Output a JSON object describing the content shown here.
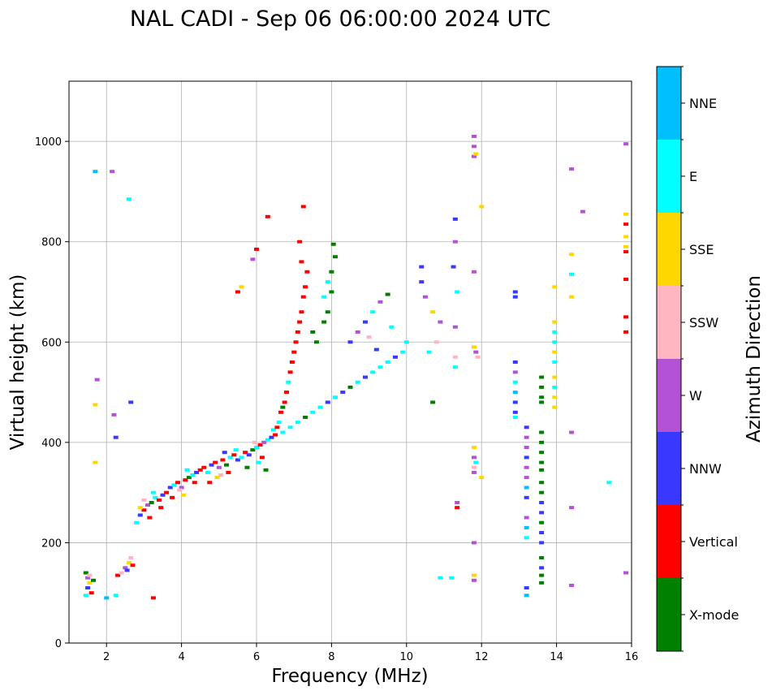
{
  "chart_data": {
    "type": "scatter",
    "title": "NAL CADI - Sep 06 06:00:00 2024 UTC",
    "xlabel": "Frequency (MHz)",
    "ylabel": "Virtual height (km)",
    "xlim": [
      1,
      16
    ],
    "ylim": [
      0,
      1120
    ],
    "xticks": [
      "2",
      "4",
      "6",
      "8",
      "10",
      "12",
      "14",
      "16"
    ],
    "yticks": [
      "0",
      "200",
      "400",
      "600",
      "800",
      "1000"
    ],
    "grid": true,
    "colorbar": {
      "label": "Azimuth Direction",
      "categories": [
        {
          "name": "X-mode",
          "color": "#008000"
        },
        {
          "name": "Vertical",
          "color": "#ff0000"
        },
        {
          "name": "NNW",
          "color": "#3838ff"
        },
        {
          "name": "W",
          "color": "#b452d6"
        },
        {
          "name": "SSW",
          "color": "#ffb6c1"
        },
        {
          "name": "SSE",
          "color": "#ffd700"
        },
        {
          "name": "E",
          "color": "#00ffff"
        },
        {
          "name": "NNE",
          "color": "#00bfff"
        }
      ]
    },
    "points": [
      [
        1.45,
        140,
        0
      ],
      [
        1.5,
        130,
        3
      ],
      [
        1.55,
        120,
        5
      ],
      [
        1.5,
        110,
        2
      ],
      [
        1.6,
        100,
        1
      ],
      [
        1.45,
        95,
        6
      ],
      [
        1.55,
        135,
        4
      ],
      [
        1.65,
        125,
        0
      ],
      [
        2.25,
        95,
        6
      ],
      [
        2.0,
        90,
        7
      ],
      [
        2.3,
        135,
        1
      ],
      [
        2.4,
        140,
        4
      ],
      [
        2.5,
        150,
        3
      ],
      [
        2.6,
        160,
        5
      ],
      [
        2.65,
        170,
        4
      ],
      [
        2.55,
        145,
        2
      ],
      [
        2.7,
        155,
        1
      ],
      [
        2.8,
        240,
        6
      ],
      [
        2.9,
        255,
        2
      ],
      [
        3.0,
        265,
        1
      ],
      [
        3.1,
        275,
        3
      ],
      [
        3.2,
        280,
        0
      ],
      [
        3.3,
        290,
        6
      ],
      [
        3.4,
        285,
        1
      ],
      [
        3.5,
        295,
        2
      ],
      [
        2.9,
        270,
        5
      ],
      [
        3.0,
        285,
        4
      ],
      [
        3.15,
        250,
        1
      ],
      [
        3.25,
        300,
        6
      ],
      [
        3.45,
        270,
        1
      ],
      [
        3.6,
        300,
        1
      ],
      [
        3.7,
        310,
        2
      ],
      [
        3.8,
        315,
        6
      ],
      [
        3.9,
        320,
        1
      ],
      [
        4.0,
        310,
        3
      ],
      [
        4.1,
        325,
        1
      ],
      [
        4.2,
        330,
        0
      ],
      [
        4.3,
        335,
        6
      ],
      [
        4.4,
        340,
        2
      ],
      [
        4.5,
        345,
        1
      ],
      [
        3.75,
        290,
        1
      ],
      [
        3.95,
        305,
        4
      ],
      [
        4.15,
        345,
        6
      ],
      [
        4.35,
        320,
        1
      ],
      [
        4.05,
        295,
        5
      ],
      [
        4.6,
        350,
        1
      ],
      [
        4.7,
        340,
        6
      ],
      [
        4.8,
        355,
        2
      ],
      [
        4.9,
        360,
        1
      ],
      [
        5.0,
        350,
        3
      ],
      [
        5.1,
        365,
        1
      ],
      [
        5.2,
        355,
        0
      ],
      [
        5.3,
        370,
        6
      ],
      [
        5.4,
        375,
        1
      ],
      [
        5.5,
        365,
        2
      ],
      [
        4.75,
        320,
        1
      ],
      [
        5.05,
        335,
        4
      ],
      [
        5.25,
        340,
        1
      ],
      [
        5.45,
        385,
        6
      ],
      [
        4.95,
        330,
        5
      ],
      [
        5.15,
        380,
        2
      ],
      [
        5.6,
        370,
        6
      ],
      [
        5.7,
        380,
        1
      ],
      [
        5.8,
        375,
        2
      ],
      [
        5.9,
        385,
        0
      ],
      [
        6.0,
        390,
        6
      ],
      [
        6.1,
        395,
        1
      ],
      [
        6.2,
        400,
        3
      ],
      [
        6.3,
        405,
        6
      ],
      [
        6.4,
        410,
        2
      ],
      [
        6.5,
        415,
        1
      ],
      [
        5.75,
        350,
        0
      ],
      [
        6.05,
        360,
        6
      ],
      [
        6.25,
        345,
        0
      ],
      [
        6.45,
        425,
        6
      ],
      [
        5.95,
        400,
        4
      ],
      [
        6.15,
        370,
        1
      ],
      [
        6.55,
        430,
        1
      ],
      [
        6.6,
        440,
        6
      ],
      [
        6.65,
        460,
        1
      ],
      [
        6.7,
        470,
        0
      ],
      [
        6.75,
        480,
        1
      ],
      [
        6.8,
        500,
        1
      ],
      [
        6.85,
        520,
        6
      ],
      [
        6.9,
        540,
        1
      ],
      [
        6.95,
        560,
        1
      ],
      [
        7.0,
        580,
        1
      ],
      [
        7.05,
        600,
        1
      ],
      [
        7.1,
        620,
        1
      ],
      [
        7.15,
        640,
        1
      ],
      [
        7.2,
        660,
        1
      ],
      [
        7.25,
        690,
        1
      ],
      [
        7.3,
        710,
        1
      ],
      [
        7.35,
        740,
        1
      ],
      [
        7.2,
        760,
        1
      ],
      [
        7.15,
        800,
        1
      ],
      [
        7.25,
        870,
        1
      ],
      [
        6.3,
        850,
        1
      ],
      [
        6.7,
        420,
        6
      ],
      [
        6.9,
        430,
        6
      ],
      [
        7.1,
        440,
        6
      ],
      [
        7.3,
        450,
        0
      ],
      [
        7.5,
        460,
        6
      ],
      [
        7.7,
        470,
        6
      ],
      [
        7.9,
        480,
        2
      ],
      [
        8.1,
        490,
        6
      ],
      [
        8.3,
        500,
        2
      ],
      [
        8.5,
        510,
        0
      ],
      [
        8.7,
        520,
        6
      ],
      [
        8.9,
        530,
        2
      ],
      [
        9.1,
        540,
        6
      ],
      [
        9.3,
        550,
        6
      ],
      [
        9.5,
        560,
        6
      ],
      [
        9.7,
        570,
        2
      ],
      [
        9.9,
        580,
        6
      ],
      [
        10.0,
        600,
        6
      ],
      [
        7.5,
        620,
        0
      ],
      [
        7.6,
        600,
        0
      ],
      [
        7.8,
        640,
        0
      ],
      [
        7.9,
        660,
        0
      ],
      [
        8.0,
        700,
        0
      ],
      [
        8.0,
        740,
        0
      ],
      [
        8.1,
        770,
        0
      ],
      [
        7.9,
        720,
        6
      ],
      [
        7.8,
        690,
        6
      ],
      [
        8.05,
        795,
        0
      ],
      [
        8.5,
        600,
        2
      ],
      [
        8.7,
        620,
        3
      ],
      [
        8.9,
        640,
        2
      ],
      [
        9.1,
        660,
        6
      ],
      [
        9.3,
        680,
        3
      ],
      [
        9.5,
        695,
        0
      ],
      [
        9.0,
        610,
        4
      ],
      [
        9.2,
        585,
        2
      ],
      [
        9.6,
        630,
        6
      ],
      [
        10.4,
        750,
        2
      ],
      [
        10.4,
        720,
        2
      ],
      [
        10.5,
        690,
        3
      ],
      [
        10.7,
        660,
        5
      ],
      [
        10.9,
        640,
        3
      ],
      [
        10.8,
        600,
        4
      ],
      [
        10.6,
        580,
        6
      ],
      [
        10.7,
        480,
        0
      ],
      [
        10.9,
        130,
        6
      ],
      [
        11.2,
        130,
        6
      ],
      [
        11.35,
        280,
        3
      ],
      [
        11.35,
        270,
        1
      ],
      [
        11.3,
        845,
        2
      ],
      [
        11.3,
        800,
        3
      ],
      [
        11.25,
        750,
        2
      ],
      [
        11.35,
        700,
        6
      ],
      [
        11.3,
        630,
        3
      ],
      [
        11.3,
        570,
        4
      ],
      [
        11.3,
        550,
        6
      ],
      [
        11.8,
        1010,
        3
      ],
      [
        11.8,
        990,
        3
      ],
      [
        11.8,
        970,
        3
      ],
      [
        11.85,
        975,
        5
      ],
      [
        11.8,
        740,
        3
      ],
      [
        11.8,
        590,
        5
      ],
      [
        11.85,
        580,
        3
      ],
      [
        11.9,
        570,
        4
      ],
      [
        12.0,
        870,
        5
      ],
      [
        11.8,
        390,
        5
      ],
      [
        11.8,
        370,
        3
      ],
      [
        11.8,
        350,
        4
      ],
      [
        11.8,
        340,
        3
      ],
      [
        11.85,
        360,
        6
      ],
      [
        11.8,
        200,
        3
      ],
      [
        11.8,
        135,
        5
      ],
      [
        11.8,
        125,
        3
      ],
      [
        12.0,
        330,
        5
      ],
      [
        12.9,
        700,
        2
      ],
      [
        12.9,
        690,
        2
      ],
      [
        12.9,
        560,
        2
      ],
      [
        12.9,
        540,
        3
      ],
      [
        12.9,
        520,
        6
      ],
      [
        12.9,
        500,
        7
      ],
      [
        12.9,
        480,
        2
      ],
      [
        12.9,
        460,
        2
      ],
      [
        12.9,
        450,
        6
      ],
      [
        13.2,
        430,
        2
      ],
      [
        13.2,
        410,
        3
      ],
      [
        13.2,
        390,
        3
      ],
      [
        13.2,
        370,
        2
      ],
      [
        13.2,
        350,
        3
      ],
      [
        13.2,
        330,
        3
      ],
      [
        13.2,
        310,
        7
      ],
      [
        13.2,
        290,
        2
      ],
      [
        13.2,
        250,
        3
      ],
      [
        13.2,
        230,
        7
      ],
      [
        13.2,
        210,
        6
      ],
      [
        13.2,
        110,
        2
      ],
      [
        13.2,
        95,
        7
      ],
      [
        13.6,
        530,
        0
      ],
      [
        13.6,
        510,
        0
      ],
      [
        13.6,
        490,
        0
      ],
      [
        13.6,
        480,
        0
      ],
      [
        13.6,
        420,
        0
      ],
      [
        13.6,
        400,
        0
      ],
      [
        13.6,
        380,
        0
      ],
      [
        13.6,
        360,
        0
      ],
      [
        13.6,
        345,
        0
      ],
      [
        13.6,
        320,
        0
      ],
      [
        13.6,
        300,
        0
      ],
      [
        13.6,
        280,
        2
      ],
      [
        13.6,
        260,
        2
      ],
      [
        13.6,
        240,
        0
      ],
      [
        13.6,
        220,
        2
      ],
      [
        13.6,
        200,
        2
      ],
      [
        13.6,
        170,
        0
      ],
      [
        13.6,
        150,
        2
      ],
      [
        13.6,
        135,
        0
      ],
      [
        13.6,
        120,
        0
      ],
      [
        13.95,
        710,
        5
      ],
      [
        13.95,
        640,
        5
      ],
      [
        13.95,
        620,
        6
      ],
      [
        13.95,
        600,
        6
      ],
      [
        13.95,
        580,
        5
      ],
      [
        13.95,
        560,
        6
      ],
      [
        13.95,
        530,
        5
      ],
      [
        13.95,
        510,
        6
      ],
      [
        13.95,
        490,
        5
      ],
      [
        13.95,
        470,
        5
      ],
      [
        14.4,
        945,
        3
      ],
      [
        14.7,
        860,
        3
      ],
      [
        14.4,
        775,
        5
      ],
      [
        14.4,
        735,
        6
      ],
      [
        14.4,
        690,
        5
      ],
      [
        14.4,
        420,
        3
      ],
      [
        14.4,
        270,
        3
      ],
      [
        14.4,
        115,
        3
      ],
      [
        15.4,
        320,
        6
      ],
      [
        15.85,
        995,
        3
      ],
      [
        15.85,
        855,
        5
      ],
      [
        15.85,
        835,
        1
      ],
      [
        15.85,
        810,
        5
      ],
      [
        15.85,
        790,
        5
      ],
      [
        15.85,
        780,
        1
      ],
      [
        15.85,
        725,
        1
      ],
      [
        15.85,
        650,
        1
      ],
      [
        15.85,
        620,
        1
      ],
      [
        15.85,
        140,
        3
      ],
      [
        1.7,
        940,
        7
      ],
      [
        2.15,
        940,
        3
      ],
      [
        2.6,
        885,
        6
      ],
      [
        1.75,
        525,
        3
      ],
      [
        2.65,
        480,
        2
      ],
      [
        1.7,
        475,
        5
      ],
      [
        2.2,
        455,
        3
      ],
      [
        2.25,
        410,
        2
      ],
      [
        1.7,
        360,
        5
      ],
      [
        3.25,
        90,
        1
      ],
      [
        5.5,
        700,
        1
      ],
      [
        5.6,
        710,
        5
      ],
      [
        5.9,
        765,
        3
      ],
      [
        6.0,
        785,
        1
      ]
    ]
  }
}
